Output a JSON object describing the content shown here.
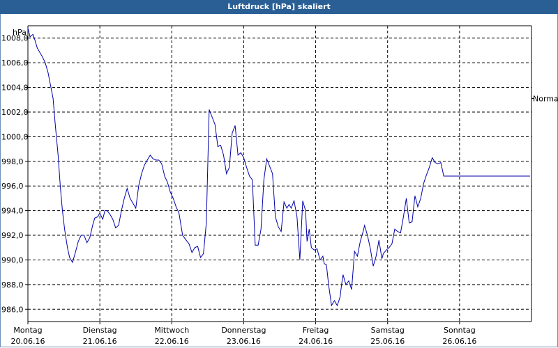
{
  "window": {
    "title": "Luftdruck [hPa] skaliert"
  },
  "chart_data": {
    "type": "line",
    "title": "Luftdruck [hPa] skaliert",
    "ylabel": "hPa",
    "ylim": [
      985.0,
      1009.0
    ],
    "xlim": [
      0,
      7
    ],
    "y_ticks": [
      "986,0",
      "988,0",
      "990,0",
      "992,0",
      "994,0",
      "996,0",
      "998,0",
      "1000,0",
      "1002,0",
      "1004,0",
      "1006,0",
      "1008,0"
    ],
    "x_ticks": [
      {
        "day": "Montag",
        "date": "20.06.16"
      },
      {
        "day": "Dienstag",
        "date": "21.06.16"
      },
      {
        "day": "Mittwoch",
        "date": "22.06.16"
      },
      {
        "day": "Donnerstag",
        "date": "23.06.16"
      },
      {
        "day": "Freitag",
        "date": "24.06.16"
      },
      {
        "day": "Samstag",
        "date": "25.06.16"
      },
      {
        "day": "Sonntag",
        "date": "26.06.16"
      }
    ],
    "annotations": [
      {
        "text": "Normal",
        "y": 1003.1
      }
    ],
    "grid": true,
    "series": [
      {
        "color": "#0000aa",
        "x": [
          0.0,
          0.03,
          0.07,
          0.1,
          0.13,
          0.17,
          0.2,
          0.24,
          0.28,
          0.32,
          0.35,
          0.38,
          0.42,
          0.45,
          0.48,
          0.51,
          0.55,
          0.58,
          0.62,
          0.66,
          0.7,
          0.74,
          0.78,
          0.82,
          0.86,
          0.9,
          0.93,
          0.97,
          1.0,
          1.04,
          1.07,
          1.1,
          1.14,
          1.18,
          1.22,
          1.26,
          1.3,
          1.34,
          1.38,
          1.42,
          1.46,
          1.5,
          1.54,
          1.58,
          1.62,
          1.66,
          1.7,
          1.74,
          1.78,
          1.82,
          1.86,
          1.9,
          1.94,
          1.98,
          2.02,
          2.06,
          2.1,
          2.15,
          2.2,
          2.24,
          2.28,
          2.32,
          2.36,
          2.4,
          2.44,
          2.48,
          2.52,
          2.56,
          2.6,
          2.64,
          2.68,
          2.72,
          2.76,
          2.8,
          2.84,
          2.88,
          2.92,
          2.96,
          3.0,
          3.04,
          3.08,
          3.12,
          3.16,
          3.2,
          3.24,
          3.28,
          3.32,
          3.36,
          3.4,
          3.44,
          3.48,
          3.52,
          3.56,
          3.6,
          3.63,
          3.66,
          3.7,
          3.74,
          3.78,
          3.82,
          3.86,
          3.88,
          3.91,
          3.94,
          3.98,
          4.02,
          4.06,
          4.1,
          4.12,
          4.15,
          4.18,
          4.22,
          4.26,
          4.3,
          4.34,
          4.36,
          4.38,
          4.42,
          4.46,
          4.5,
          4.54,
          4.58,
          4.62,
          4.66,
          4.68,
          4.72,
          4.76,
          4.8,
          4.84,
          4.88,
          4.92,
          4.94,
          4.98,
          5.02,
          5.06,
          5.1,
          5.14,
          5.18,
          5.22,
          5.26,
          5.3,
          5.34,
          5.38,
          5.42,
          5.46,
          5.5,
          5.54,
          5.58,
          5.62,
          5.66,
          5.7,
          5.74,
          5.78,
          5.82,
          5.86,
          5.9,
          5.94,
          5.98,
          6.02,
          6.06,
          6.1,
          6.14,
          6.18,
          6.22,
          6.26,
          6.3,
          6.34,
          6.38,
          6.42,
          6.46,
          6.5,
          6.54,
          6.58,
          6.62,
          6.66,
          6.7,
          6.74,
          6.78,
          6.82,
          6.86,
          6.9,
          6.94,
          6.98
        ],
        "y": [
          1008.8,
          1008.1,
          1008.3,
          1007.8,
          1007.2,
          1006.8,
          1006.5,
          1006.0,
          1005.2,
          1004.0,
          1003.1,
          1001.0,
          998.5,
          996.0,
          994.0,
          992.5,
          991.0,
          990.2,
          989.8,
          990.6,
          991.5,
          992.0,
          992.0,
          991.4,
          991.8,
          992.8,
          993.4,
          993.5,
          993.8,
          993.3,
          994.0,
          994.0,
          993.7,
          993.3,
          992.6,
          992.8,
          994.0,
          995.0,
          995.8,
          995.0,
          994.6,
          994.2,
          996.0,
          997.0,
          997.7,
          998.1,
          998.5,
          998.2,
          998.1,
          998.1,
          997.8,
          996.8,
          996.3,
          995.5,
          995.0,
          994.3,
          993.8,
          992.0,
          991.6,
          991.3,
          990.6,
          991.0,
          991.1,
          990.2,
          990.5,
          993.0,
          1002.2,
          1001.6,
          1001.0,
          999.2,
          999.3,
          998.5,
          997.0,
          997.5,
          1000.3,
          1000.9,
          998.5,
          998.7,
          998.3,
          997.5,
          996.8,
          996.5,
          991.2,
          991.2,
          992.5,
          996.5,
          998.2,
          997.6,
          997.0,
          993.5,
          992.7,
          992.3,
          994.7,
          994.2,
          994.5,
          994.2,
          994.8,
          993.5,
          990.0,
          994.8,
          994.0,
          991.5,
          992.5,
          991.0,
          990.8,
          990.9,
          990.0,
          990.3,
          989.7,
          989.6,
          988.0,
          986.3,
          986.7,
          986.3,
          987.0,
          988.0,
          988.8,
          988.0,
          988.3,
          987.6,
          990.7,
          990.3,
          991.5,
          992.3,
          992.8,
          992.0,
          990.9,
          989.5,
          990.3,
          991.6,
          990.1,
          990.5,
          990.8,
          991.0,
          991.3,
          992.5,
          992.3,
          992.2,
          993.5,
          995.0,
          993.0,
          993.1,
          995.2,
          994.3,
          995.0,
          996.2,
          996.9,
          997.5,
          998.3,
          997.9,
          997.8,
          997.9,
          996.8,
          996.8,
          996.8,
          996.8,
          996.8,
          996.8,
          996.8,
          996.8,
          996.8,
          996.8,
          996.8,
          996.8,
          996.8,
          996.8,
          996.8,
          996.8,
          996.8,
          996.8,
          996.8,
          996.8,
          996.8,
          996.8,
          996.8,
          996.8,
          996.8,
          996.8,
          996.8,
          996.8,
          996.8,
          996.8,
          996.8
        ]
      }
    ]
  }
}
